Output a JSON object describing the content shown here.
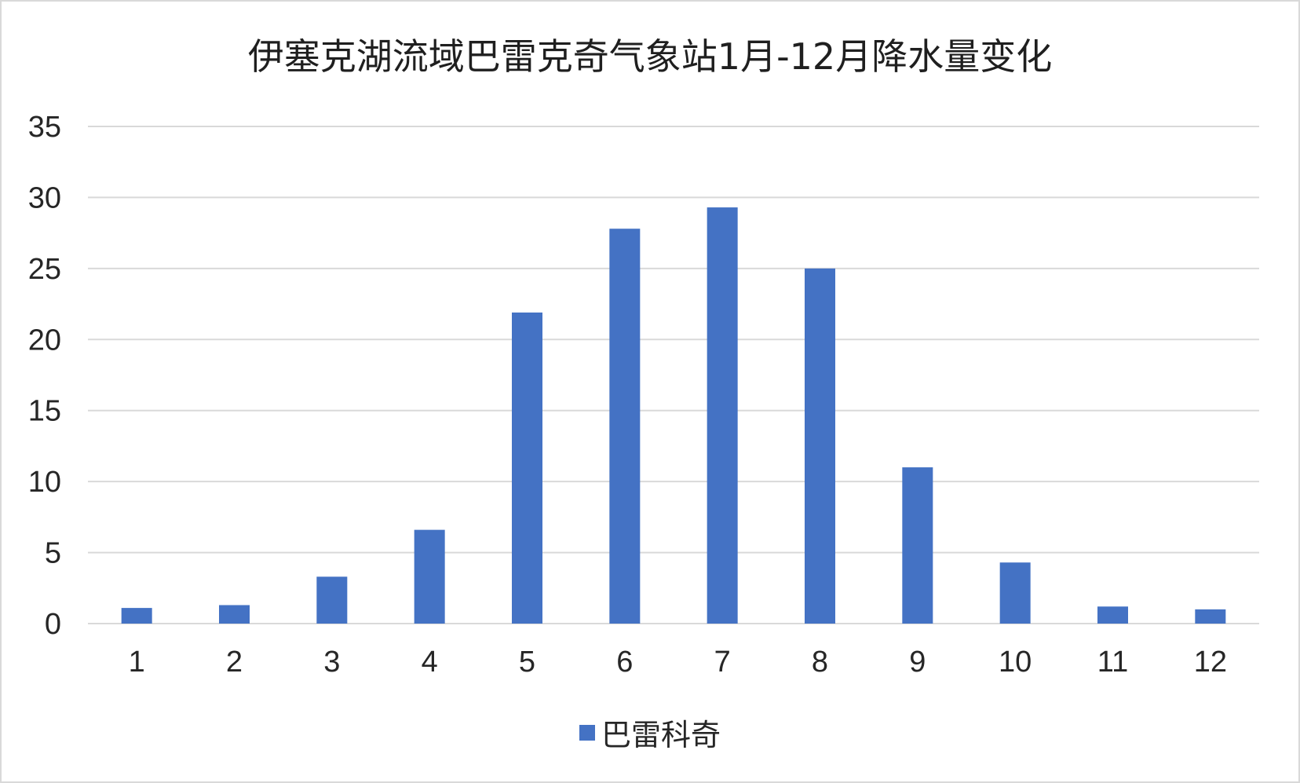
{
  "chart_data": {
    "type": "bar",
    "title": "伊塞克湖流域巴雷克奇气象站1月-12月降水量变化",
    "categories": [
      "1",
      "2",
      "3",
      "4",
      "5",
      "6",
      "7",
      "8",
      "9",
      "10",
      "11",
      "12"
    ],
    "series": [
      {
        "name": "巴雷科奇",
        "color": "#4472c4",
        "values": [
          1.1,
          1.3,
          3.3,
          6.6,
          21.9,
          27.8,
          29.3,
          25.0,
          11.0,
          4.3,
          1.2,
          1.0
        ]
      }
    ],
    "ylim": [
      0,
      35
    ],
    "yticks": [
      0,
      5,
      10,
      15,
      20,
      25,
      30,
      35
    ],
    "grid": true,
    "legend_position": "bottom"
  }
}
